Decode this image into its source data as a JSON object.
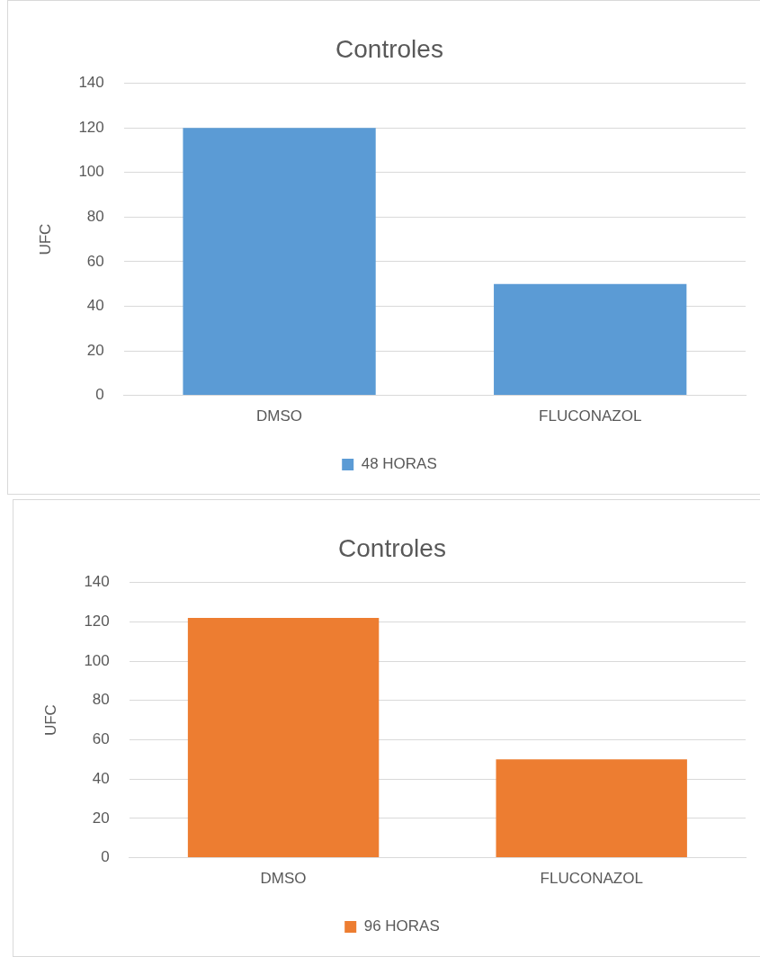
{
  "chart_data": [
    {
      "type": "bar",
      "title": "Controles",
      "ylabel": "UFC",
      "categories": [
        "DMSO",
        "FLUCONAZOL"
      ],
      "series": [
        {
          "name": "48 HORAS",
          "color": "#5b9bd5",
          "values": [
            120,
            50
          ]
        }
      ],
      "ylim": [
        0,
        140
      ],
      "yticks": [
        0,
        20,
        40,
        60,
        80,
        100,
        120,
        140
      ],
      "grid": "y",
      "legend": "bottom"
    },
    {
      "type": "bar",
      "title": "Controles",
      "ylabel": "UFC",
      "categories": [
        "DMSO",
        "FLUCONAZOL"
      ],
      "series": [
        {
          "name": "96 HORAS",
          "color": "#ed7d31",
          "values": [
            122,
            50
          ]
        }
      ],
      "ylim": [
        0,
        140
      ],
      "yticks": [
        0,
        20,
        40,
        60,
        80,
        100,
        120,
        140
      ],
      "grid": "y",
      "legend": "bottom"
    }
  ]
}
